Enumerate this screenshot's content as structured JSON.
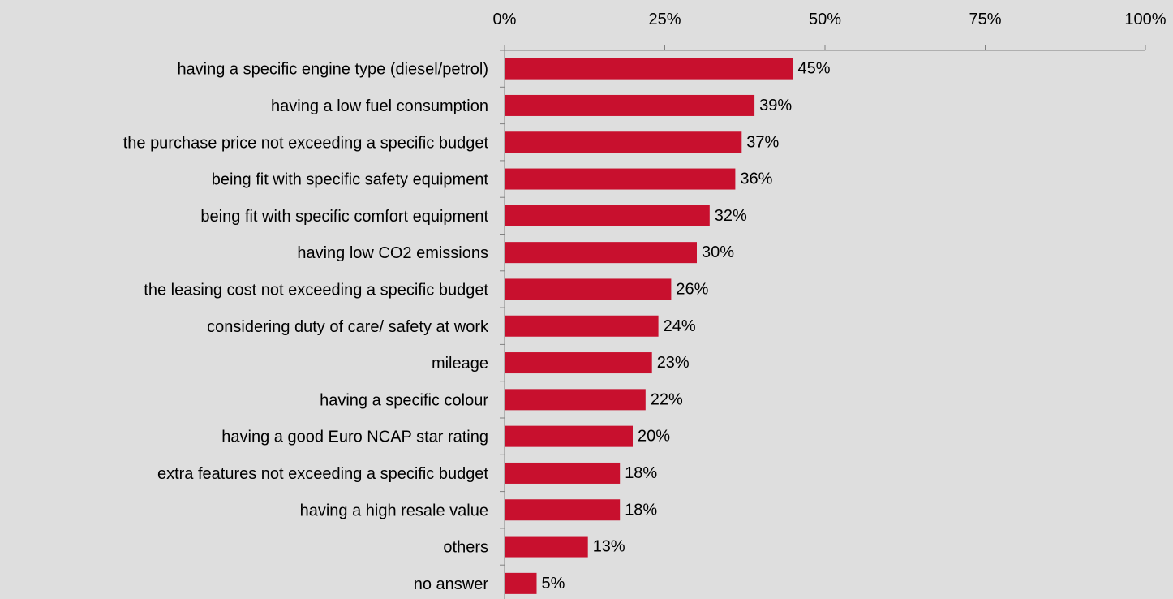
{
  "chart_data": {
    "type": "bar",
    "orientation": "horizontal",
    "categories": [
      "having a specific engine type (diesel/petrol)",
      "having a low fuel consumption",
      "the purchase price not exceeding a specific budget",
      "being fit with specific safety equipment",
      "being fit with specific comfort equipment",
      "having low CO2 emissions",
      "the leasing cost not exceeding a specific budget",
      "considering duty of care/ safety at work",
      "mileage",
      "having a specific colour",
      "having a good Euro NCAP star rating",
      "extra features not exceeding a specific budget",
      "having a high resale value",
      "others",
      "no answer"
    ],
    "values": [
      45,
      39,
      37,
      36,
      32,
      30,
      26,
      24,
      23,
      22,
      20,
      18,
      18,
      13,
      5
    ],
    "data_labels": [
      "45%",
      "39%",
      "37%",
      "36%",
      "32%",
      "30%",
      "26%",
      "24%",
      "23%",
      "22%",
      "20%",
      "18%",
      "18%",
      "13%",
      "5%"
    ],
    "xlim": [
      0,
      100
    ],
    "xticks": [
      0,
      25,
      50,
      75,
      100
    ],
    "xtick_labels": [
      "0%",
      "25%",
      "50%",
      "75%",
      "100%"
    ],
    "x_axis_position": "top",
    "grid": false,
    "legend": "none",
    "title": "",
    "xlabel": "",
    "ylabel": "",
    "colors": {
      "bar": "#c8102e",
      "background": "#dedede",
      "axis": "#808080",
      "text": "#000000"
    }
  }
}
